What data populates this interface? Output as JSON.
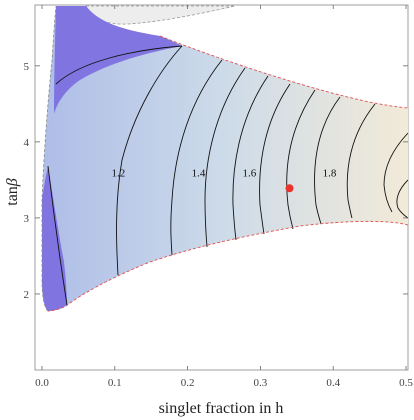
{
  "chart_data": {
    "type": "contour",
    "title": "",
    "xlabel": "singlet fraction in h",
    "ylabel_prefix": "tan",
    "ylabel_symbol": "β",
    "xlim": [
      0.0,
      0.5
    ],
    "ylim": [
      1.0,
      5.8
    ],
    "x_ticks": [
      "0.0",
      "0.1",
      "0.2",
      "0.3",
      "0.4",
      "0.5"
    ],
    "y_ticks": [
      "2",
      "3",
      "4",
      "5"
    ],
    "grid": false,
    "contours": [
      {
        "level": "1.2",
        "label_x": 0.09,
        "label_y": 3.6
      },
      {
        "level": "1.4",
        "label_x": 0.2,
        "label_y": 3.6
      },
      {
        "level": "1.6",
        "label_x": 0.27,
        "label_y": 3.6
      },
      {
        "level": "1.8",
        "label_x": 0.38,
        "label_y": 3.6
      }
    ],
    "marker": {
      "x": 0.34,
      "y": 3.39,
      "color": "#e8342c"
    },
    "colors": {
      "excluded_region": "#7c6ee0",
      "low_value": "#aebde8",
      "high_value": "#f2ead8",
      "boundary": "#e05050"
    }
  }
}
